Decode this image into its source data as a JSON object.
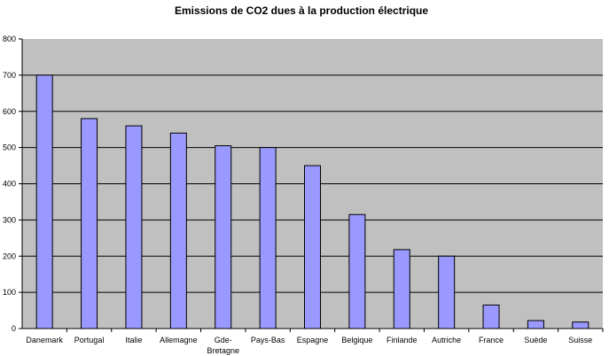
{
  "chart_data": {
    "type": "bar",
    "title": "Emissions de CO2 dues à la production électrique",
    "xlabel": "",
    "ylabel": "",
    "categories": [
      "Danemark",
      "Portugal",
      "Italie",
      "Allemagne",
      "Gde-Bretagne",
      "Pays-Bas",
      "Espagne",
      "Belgique",
      "Finlande",
      "Autriche",
      "France",
      "Suède",
      "Suisse"
    ],
    "category_lines": [
      [
        "Danemark"
      ],
      [
        "Portugal"
      ],
      [
        "Italie"
      ],
      [
        "Allemagne"
      ],
      [
        "Gde-",
        "Bretagne"
      ],
      [
        "Pays-Bas"
      ],
      [
        "Espagne"
      ],
      [
        "Belgique"
      ],
      [
        "Finlande"
      ],
      [
        "Autriche"
      ],
      [
        "France"
      ],
      [
        "Suède"
      ],
      [
        "Suisse"
      ]
    ],
    "values": [
      700,
      580,
      560,
      540,
      505,
      500,
      450,
      315,
      218,
      200,
      65,
      22,
      18
    ],
    "ylim": [
      0,
      800
    ],
    "yticks": [
      0,
      100,
      200,
      300,
      400,
      500,
      600,
      700,
      800
    ],
    "grid": true,
    "legend": "none",
    "colors": {
      "bar": "#9999ff",
      "bar_edge": "#000000",
      "plot_background": "#c0c0c0",
      "gridline": "#000000"
    }
  }
}
